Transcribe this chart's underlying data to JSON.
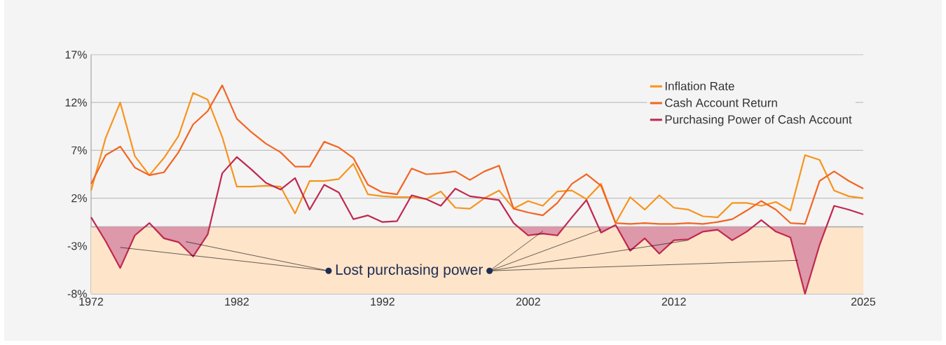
{
  "chart_data": {
    "type": "line",
    "x": [
      1972,
      1973,
      1974,
      1975,
      1976,
      1977,
      1978,
      1979,
      1980,
      1981,
      1982,
      1983,
      1984,
      1985,
      1986,
      1987,
      1988,
      1989,
      1990,
      1991,
      1992,
      1993,
      1994,
      1995,
      1996,
      1997,
      1998,
      1999,
      2000,
      2001,
      2002,
      2003,
      2004,
      2005,
      2006,
      2007,
      2008,
      2009,
      2010,
      2011,
      2012,
      2013,
      2014,
      2015,
      2016,
      2017,
      2018,
      2019,
      2020,
      2021,
      2022,
      2023,
      2024,
      2025
    ],
    "series": [
      {
        "name": "Inflation Rate",
        "color": "#f7941d",
        "values": [
          2.8,
          8.3,
          12.0,
          6.4,
          4.4,
          6.2,
          8.5,
          13.0,
          12.3,
          8.4,
          3.2,
          3.2,
          3.3,
          3.2,
          0.4,
          3.8,
          3.8,
          4.0,
          5.6,
          2.4,
          2.2,
          2.1,
          2.1,
          1.9,
          2.7,
          1.0,
          0.9,
          2.0,
          2.8,
          0.9,
          1.7,
          1.2,
          2.7,
          2.8,
          1.9,
          3.5,
          -0.6,
          2.1,
          0.8,
          2.3,
          1.0,
          0.8,
          0.1,
          0.0,
          1.5,
          1.5,
          1.2,
          1.6,
          0.7,
          6.5,
          6.0,
          2.8,
          2.2,
          2.0
        ]
      },
      {
        "name": "Cash Account Return",
        "color": "#f26522",
        "values": [
          3.5,
          6.5,
          7.4,
          5.2,
          4.4,
          4.7,
          6.8,
          9.7,
          11.1,
          13.8,
          10.3,
          8.9,
          7.7,
          6.8,
          5.3,
          5.3,
          7.9,
          7.3,
          6.2,
          3.4,
          2.6,
          2.4,
          5.1,
          4.5,
          4.6,
          4.8,
          3.9,
          4.8,
          5.4,
          0.9,
          0.5,
          0.2,
          1.5,
          3.5,
          4.5,
          3.3,
          -0.6,
          -0.7,
          -0.6,
          -0.7,
          -0.7,
          -0.6,
          -0.7,
          -0.5,
          -0.2,
          0.7,
          1.7,
          0.8,
          -0.6,
          -0.7,
          3.8,
          4.8,
          3.8,
          3.0
        ]
      },
      {
        "name": "Purchasing Power of Cash Account",
        "color": "#c0284f",
        "type": "area",
        "values": [
          0.0,
          -2.5,
          -5.3,
          -1.9,
          -0.6,
          -2.2,
          -2.6,
          -4.1,
          -1.8,
          4.6,
          6.3,
          5.0,
          3.6,
          2.9,
          4.1,
          0.8,
          3.4,
          2.6,
          -0.2,
          0.2,
          -0.5,
          -0.4,
          2.3,
          1.9,
          1.2,
          3.0,
          2.2,
          2.0,
          1.8,
          -0.6,
          -1.9,
          -1.7,
          -1.9,
          0.0,
          1.8,
          -1.6,
          -0.8,
          -3.5,
          -2.2,
          -3.8,
          -2.4,
          -2.3,
          -1.5,
          -1.3,
          -2.4,
          -1.5,
          -0.3,
          -1.5,
          -2.1,
          -8.0,
          -2.9,
          1.2,
          0.8,
          0.3
        ]
      }
    ],
    "xlim": [
      1972,
      2025
    ],
    "xticks": [
      1972,
      1982,
      1992,
      2002,
      2012,
      2025
    ],
    "ylim": [
      -8,
      17
    ],
    "yticks": [
      {
        "value": 17,
        "label": "17%"
      },
      {
        "value": 12,
        "label": "12%"
      },
      {
        "value": 7,
        "label": "7%"
      },
      {
        "value": 2,
        "label": "2%"
      },
      {
        "value": -3,
        "label": "-3%"
      },
      {
        "value": -8,
        "label": "-8%"
      }
    ],
    "grid": "y",
    "legend": "top right",
    "bands": [
      {
        "axis": "y",
        "from": -8,
        "to": -1,
        "color": "#fee4c9"
      }
    ],
    "ref_lines": [
      {
        "axis": "y",
        "value": -1,
        "color": "#a6a6a6"
      }
    ],
    "annotations": [
      {
        "text": "Lost purchasing power",
        "x": 1988.3,
        "y": -5.6
      }
    ]
  }
}
